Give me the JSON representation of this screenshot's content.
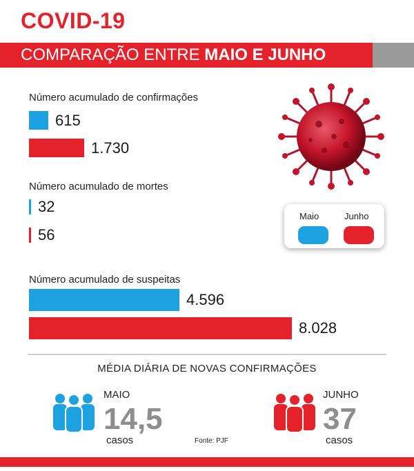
{
  "header": {
    "title": "COVID-19",
    "subtitle_prefix": "COMPARAÇÃO ENTRE ",
    "subtitle_bold": "MAIO E JUNHO"
  },
  "colors": {
    "maio": "#1ea1e0",
    "junho": "#e3222b",
    "accent": "#e3222b"
  },
  "legend": {
    "maio": "Maio",
    "junho": "Junho"
  },
  "chart_data": {
    "type": "bar",
    "orientation": "horizontal",
    "groups": [
      {
        "label": "Número acumulado de confirmações",
        "maio": 615,
        "maio_label": "615",
        "junho": 1730,
        "junho_label": "1.730"
      },
      {
        "label": "Número acumulado de mortes",
        "maio": 32,
        "maio_label": "32",
        "junho": 56,
        "junho_label": "56"
      },
      {
        "label": "Número acumulado de suspeitas",
        "maio": 4596,
        "maio_label": "4.596",
        "junho": 8028,
        "junho_label": "8.028"
      }
    ],
    "series": [
      {
        "name": "Maio"
      },
      {
        "name": "Junho"
      }
    ]
  },
  "media": {
    "title": "MÉDIA DIÁRIA DE NOVAS CONFIRMAÇÕES",
    "maio": {
      "month": "MAIO",
      "value": "14,5",
      "unit": "casos"
    },
    "junho": {
      "month": "JUNHO",
      "value": "37",
      "unit": "casos"
    }
  },
  "source": "Fonte: PJF"
}
